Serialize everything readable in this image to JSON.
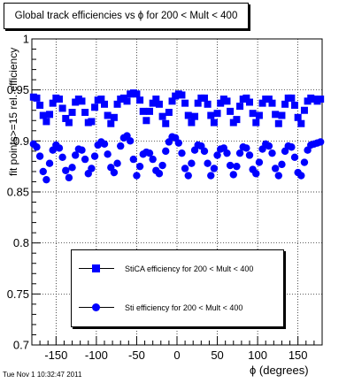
{
  "chart_data": {
    "type": "scatter",
    "title": "Global track efficiencies vs ϕ for 200 < Mult < 400",
    "xlabel": "ϕ (degrees)",
    "ylabel": "fit points>=15 rel. efficiency",
    "xlim": [
      -180,
      180
    ],
    "ylim": [
      0.7,
      1.0
    ],
    "xticks": [
      -150,
      -100,
      -50,
      0,
      50,
      100,
      150
    ],
    "xtick_labels": [
      "-150",
      "-100",
      "-50",
      "0",
      "50",
      "100",
      "150"
    ],
    "yticks": [
      0.7,
      0.75,
      0.8,
      0.85,
      0.9,
      0.95,
      1.0
    ],
    "ytick_labels": [
      "0.7",
      "0.75",
      "0.8",
      "0.85",
      "0.9",
      "0.95",
      "1"
    ],
    "grid": true,
    "legend_position": "bottom-center",
    "colors": {
      "markers": "#0000ff",
      "axes": "#000000"
    },
    "series": [
      {
        "name": "StiCA efficiency  for 200 < Mult < 400",
        "marker": "square",
        "x": [
          -178,
          -174,
          -170,
          -166,
          -162,
          -158,
          -154,
          -150,
          -146,
          -142,
          -138,
          -134,
          -130,
          -126,
          -122,
          -118,
          -114,
          -110,
          -106,
          -102,
          -98,
          -94,
          -90,
          -86,
          -82,
          -78,
          -74,
          -70,
          -66,
          -62,
          -58,
          -54,
          -50,
          -46,
          -42,
          -38,
          -34,
          -30,
          -26,
          -22,
          -18,
          -14,
          -10,
          -6,
          -2,
          2,
          6,
          10,
          14,
          18,
          22,
          26,
          30,
          34,
          38,
          42,
          46,
          50,
          54,
          58,
          62,
          66,
          70,
          74,
          78,
          82,
          86,
          90,
          94,
          98,
          102,
          106,
          110,
          114,
          118,
          122,
          126,
          130,
          134,
          138,
          142,
          146,
          150,
          154,
          158,
          162,
          166,
          170,
          174,
          178
        ],
        "values": [
          0.943,
          0.942,
          0.935,
          0.925,
          0.919,
          0.926,
          0.937,
          0.942,
          0.941,
          0.932,
          0.922,
          0.918,
          0.928,
          0.938,
          0.941,
          0.939,
          0.928,
          0.918,
          0.919,
          0.933,
          0.94,
          0.941,
          0.936,
          0.925,
          0.917,
          0.923,
          0.936,
          0.941,
          0.942,
          0.939,
          0.946,
          0.947,
          0.946,
          0.94,
          0.929,
          0.92,
          0.929,
          0.937,
          0.941,
          0.936,
          0.924,
          0.917,
          0.928,
          0.939,
          0.944,
          0.946,
          0.945,
          0.937,
          0.925,
          0.918,
          0.924,
          0.937,
          0.942,
          0.942,
          0.936,
          0.925,
          0.918,
          0.927,
          0.937,
          0.941,
          0.939,
          0.929,
          0.918,
          0.921,
          0.934,
          0.941,
          0.942,
          0.938,
          0.927,
          0.918,
          0.925,
          0.937,
          0.941,
          0.941,
          0.937,
          0.926,
          0.917,
          0.925,
          0.936,
          0.942,
          0.942,
          0.935,
          0.923,
          0.917,
          0.93,
          0.939,
          0.942,
          0.941,
          0.939,
          0.941
        ]
      },
      {
        "name": "Sti efficiency  for 200 < Mult < 400",
        "marker": "circle",
        "x": [
          -178,
          -174,
          -170,
          -166,
          -162,
          -158,
          -154,
          -150,
          -146,
          -142,
          -138,
          -134,
          -130,
          -126,
          -122,
          -118,
          -114,
          -110,
          -106,
          -102,
          -98,
          -94,
          -90,
          -86,
          -82,
          -78,
          -74,
          -70,
          -66,
          -62,
          -58,
          -54,
          -50,
          -46,
          -42,
          -38,
          -34,
          -30,
          -26,
          -22,
          -18,
          -14,
          -10,
          -6,
          -2,
          2,
          6,
          10,
          14,
          18,
          22,
          26,
          30,
          34,
          38,
          42,
          46,
          50,
          54,
          58,
          62,
          66,
          70,
          74,
          78,
          82,
          86,
          90,
          94,
          98,
          102,
          106,
          110,
          114,
          118,
          122,
          126,
          130,
          134,
          138,
          142,
          146,
          150,
          154,
          158,
          162,
          166,
          170,
          174,
          178
        ],
        "values": [
          0.897,
          0.894,
          0.885,
          0.87,
          0.862,
          0.878,
          0.891,
          0.896,
          0.893,
          0.884,
          0.871,
          0.864,
          0.874,
          0.886,
          0.892,
          0.891,
          0.882,
          0.868,
          0.873,
          0.885,
          0.896,
          0.899,
          0.897,
          0.887,
          0.874,
          0.869,
          0.878,
          0.895,
          0.903,
          0.905,
          0.9,
          0.882,
          0.866,
          0.875,
          0.887,
          0.889,
          0.888,
          0.882,
          0.871,
          0.868,
          0.876,
          0.89,
          0.899,
          0.904,
          0.903,
          0.898,
          0.888,
          0.873,
          0.866,
          0.878,
          0.891,
          0.896,
          0.895,
          0.89,
          0.878,
          0.866,
          0.873,
          0.886,
          0.892,
          0.893,
          0.888,
          0.876,
          0.867,
          0.875,
          0.888,
          0.894,
          0.893,
          0.886,
          0.872,
          0.868,
          0.879,
          0.892,
          0.897,
          0.895,
          0.888,
          0.873,
          0.866,
          0.877,
          0.89,
          0.895,
          0.894,
          0.884,
          0.869,
          0.866,
          0.879,
          0.891,
          0.896,
          0.897,
          0.898,
          0.899
        ]
      }
    ]
  },
  "footer": {
    "timestamp": "Tue Nov  1 10:32:47 2011"
  }
}
